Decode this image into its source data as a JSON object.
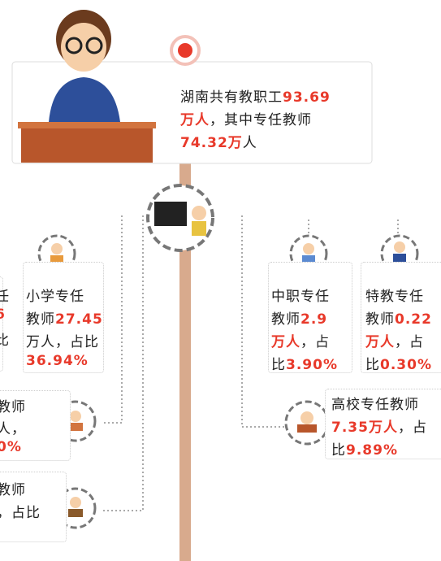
{
  "header": {
    "lines": [
      [
        {
          "text": "湖南共有教职工"
        },
        {
          "text": "93.69",
          "red": true
        }
      ],
      [
        {
          "text": "万人",
          "red": true
        },
        {
          "text": "，其中专任教师"
        }
      ],
      [
        {
          "text": "74.32万",
          "red": true
        },
        {
          "text": "人"
        }
      ]
    ]
  },
  "cards": [
    {
      "lines": [
        [
          {
            "text": "任"
          }
        ],
        [
          {
            "text": "6",
            "red": true
          }
        ],
        [
          {
            "text": "比"
          }
        ]
      ]
    },
    {
      "lines": [
        [
          {
            "text": "小学专任"
          }
        ],
        [
          {
            "text": "教师"
          },
          {
            "text": "27.45",
            "red": true
          }
        ],
        [
          {
            "text": "万人，占比"
          }
        ],
        [
          {
            "text": "36.94%",
            "red": true
          }
        ]
      ]
    },
    {
      "lines": [
        [
          {
            "text": "中职专任"
          }
        ],
        [
          {
            "text": "教师"
          },
          {
            "text": "2.9",
            "red": true
          }
        ],
        [
          {
            "text": "万人",
            "red": true
          },
          {
            "text": "，占"
          }
        ],
        [
          {
            "text": "比"
          },
          {
            "text": "3.90%",
            "red": true
          }
        ]
      ]
    },
    {
      "lines": [
        [
          {
            "text": "特教专任"
          }
        ],
        [
          {
            "text": "教师"
          },
          {
            "text": "0.22",
            "red": true
          }
        ],
        [
          {
            "text": "万人",
            "red": true
          },
          {
            "text": "，占"
          }
        ],
        [
          {
            "text": "比"
          },
          {
            "text": "0.30%",
            "red": true
          }
        ]
      ]
    },
    {
      "lines": [
        [
          {
            "text": "教师"
          }
        ],
        [
          {
            "text": "人，"
          }
        ],
        [
          {
            "text": "0%",
            "red": true
          }
        ]
      ]
    },
    {
      "lines": [
        [
          {
            "text": "高校专任教师"
          }
        ],
        [
          {
            "text": "7.35万人",
            "red": true
          },
          {
            "text": "，占"
          }
        ],
        [
          {
            "text": "比"
          },
          {
            "text": "9.89%",
            "red": true
          }
        ]
      ]
    },
    {
      "lines": [
        [
          {
            "text": "教师"
          }
        ],
        [
          {
            "text": "，占比"
          }
        ]
      ]
    }
  ]
}
